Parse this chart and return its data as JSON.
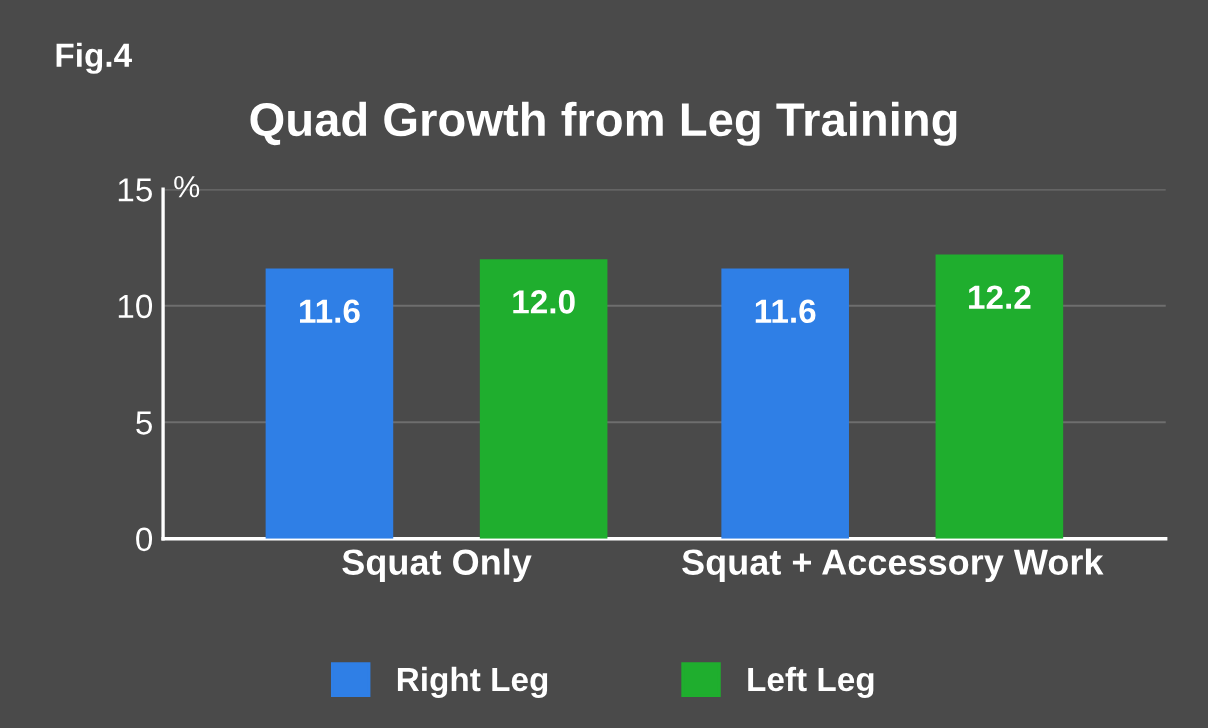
{
  "chart_data": {
    "type": "bar",
    "title": "Quad Growth from Leg Training",
    "ylabel": "%",
    "annotations": [
      "Fig.4"
    ],
    "categories": [
      "Squat Only",
      "Squat + Accessory Work"
    ],
    "series": [
      {
        "name": "Right Leg",
        "color": "#2f7fe6",
        "values": [
          11.6,
          11.6
        ],
        "value_labels": [
          "11.6",
          "11.6"
        ]
      },
      {
        "name": "Left Leg",
        "color": "#1fae2e",
        "values": [
          12.0,
          12.2
        ],
        "value_labels": [
          "12.0",
          "12.2"
        ]
      }
    ],
    "ylim": [
      0,
      15
    ],
    "yticks": [
      0,
      5,
      10,
      15
    ],
    "grid": "y",
    "legend": "bottom"
  }
}
